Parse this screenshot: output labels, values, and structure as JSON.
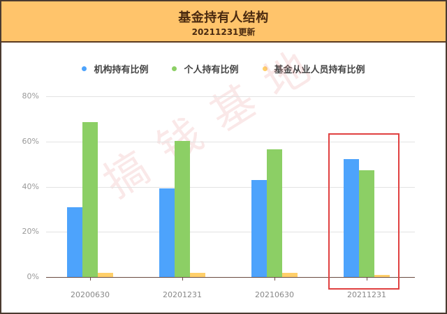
{
  "header": {
    "title": "基金持有人结构",
    "subtitle": "20211231更新"
  },
  "legend": [
    {
      "label": "机构持有比例",
      "color": "#4da3fc"
    },
    {
      "label": "个人持有比例",
      "color": "#8ccf65"
    },
    {
      "label": "基金从业人员持有比例",
      "color": "#ffcf6a"
    }
  ],
  "y_ticks": [
    "80%",
    "60%",
    "40%",
    "20%",
    "0%"
  ],
  "watermark": "搞钱基地",
  "chart_data": {
    "type": "bar",
    "title": "基金持有人结构",
    "subtitle": "20211231更新",
    "categories": [
      "20200630",
      "20201231",
      "20210630",
      "20211231"
    ],
    "series": [
      {
        "name": "机构持有比例",
        "color": "#4da3fc",
        "values": [
          31.0,
          39.2,
          42.9,
          52.1
        ]
      },
      {
        "name": "个人持有比例",
        "color": "#8ccf65",
        "values": [
          68.6,
          60.3,
          56.6,
          47.2
        ]
      },
      {
        "name": "基金从业人员持有比例",
        "color": "#ffcf6a",
        "values": [
          2.0,
          1.8,
          2.0,
          0.9
        ]
      }
    ],
    "xlabel": "",
    "ylabel": "",
    "ylim": [
      0,
      80
    ],
    "y_tick_labels": [
      "0%",
      "20%",
      "40%",
      "60%",
      "80%"
    ],
    "grid": true,
    "legend_position": "top",
    "annotations": [
      {
        "type": "highlight-box",
        "category": "20211231",
        "color": "#e04040"
      }
    ]
  }
}
